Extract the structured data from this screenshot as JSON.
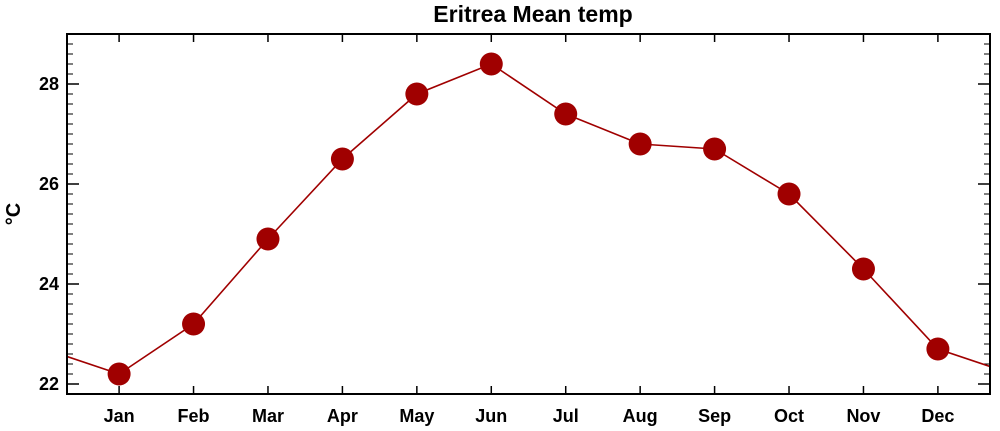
{
  "chart_data": {
    "type": "line",
    "title": "Eritrea Mean temp",
    "xlabel": "",
    "ylabel": "°C",
    "categories": [
      "Jan",
      "Feb",
      "Mar",
      "Apr",
      "May",
      "Jun",
      "Jul",
      "Aug",
      "Sep",
      "Oct",
      "Nov",
      "Dec"
    ],
    "series": [
      {
        "values": [
          22.2,
          23.2,
          24.9,
          26.5,
          27.8,
          28.4,
          27.4,
          26.8,
          26.7,
          25.8,
          24.3,
          22.7
        ]
      }
    ],
    "ylim": [
      21.8,
      29.0
    ],
    "yticks": [
      22,
      24,
      26,
      28
    ],
    "ytick_labels": [
      "22",
      "24",
      "26",
      "28"
    ],
    "grid": false,
    "series_color": "#a00000",
    "marker_color": "#a00000"
  }
}
